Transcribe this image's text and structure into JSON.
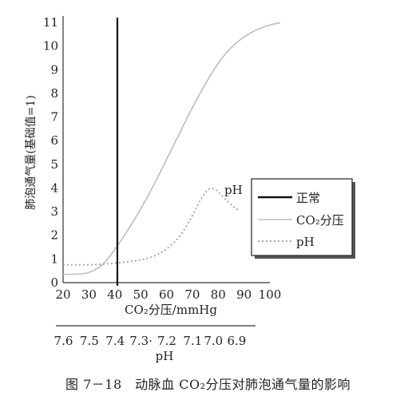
{
  "chart_data": {
    "type": "line",
    "ylabel": "肺泡通气量(基础值=1)",
    "xlabel": "CO₂分压/mmHg",
    "x2label": "pH",
    "ylim": [
      0,
      11
    ],
    "xlim": [
      20,
      100
    ],
    "y_ticks": [
      "0",
      "1",
      "2",
      "3",
      "4",
      "5",
      "6",
      "7",
      "8",
      "9",
      "10",
      "11"
    ],
    "x_ticks": [
      "20",
      "30",
      "40",
      "50",
      "60",
      "70",
      "80",
      "90",
      "100"
    ],
    "x_tick_values": [
      20,
      30,
      40,
      50,
      60,
      70,
      80,
      90,
      100
    ],
    "ph_ticks": [
      "7.6",
      "7.5",
      "7.4",
      "7.3·",
      "7.2",
      "7.1",
      "7.0",
      "6.9"
    ],
    "ph_tick_positions": [
      22,
      32,
      42,
      52,
      62,
      72,
      80,
      89
    ],
    "normal_line_x": 41,
    "series": [
      {
        "name": "CO₂分压",
        "style": "solid-light",
        "x": [
          20,
          25,
          30,
          35,
          38,
          41,
          45,
          50,
          55,
          60,
          65,
          70,
          75,
          80,
          85,
          90,
          95,
          100,
          104
        ],
        "y": [
          0.35,
          0.35,
          0.4,
          0.7,
          1.1,
          1.55,
          2.2,
          3.1,
          4.1,
          5.2,
          6.3,
          7.4,
          8.4,
          9.3,
          9.95,
          10.4,
          10.7,
          10.9,
          10.98
        ]
      },
      {
        "name": "pH",
        "style": "dotted",
        "x": [
          20,
          25,
          30,
          35,
          40,
          45,
          50,
          55,
          60,
          65,
          70,
          73,
          76,
          78,
          80,
          83,
          86,
          88
        ],
        "y": [
          0.75,
          0.75,
          0.75,
          0.78,
          0.82,
          0.88,
          0.95,
          1.1,
          1.4,
          1.9,
          2.8,
          3.5,
          3.95,
          4.0,
          3.85,
          3.5,
          3.2,
          3.05
        ]
      }
    ],
    "annotation": "pH",
    "legend": {
      "position": "right",
      "items": [
        {
          "label": "正常",
          "style": "solid-dark"
        },
        {
          "label": "CO₂分压",
          "style": "solid-light"
        },
        {
          "label": "pH",
          "style": "dotted"
        }
      ]
    }
  },
  "caption": "图 7－18　动脉血 CO₂分压对肺泡通气量的影响",
  "colors": {
    "normal": "#111111",
    "co2": "#bdbdbd",
    "ph": "#a9a9a9",
    "axis": "#333333"
  }
}
